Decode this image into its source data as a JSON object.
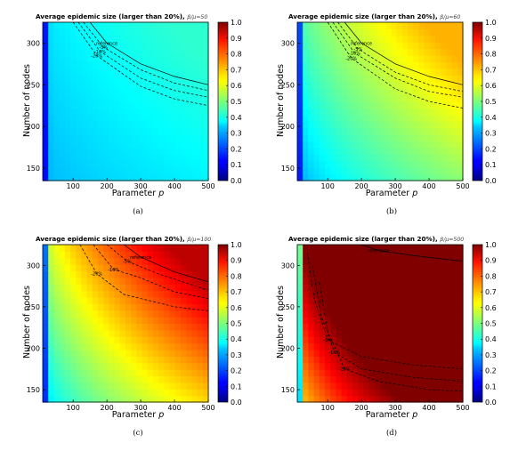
{
  "figure": {
    "panels": [
      {
        "caption": "(a)",
        "title": "Average epidemic size (larger than 20%),",
        "title_param": "β/μ=50"
      },
      {
        "caption": "(b)",
        "title": "Average epidemic size (larger than 20%),",
        "title_param": "β/μ=60"
      },
      {
        "caption": "(c)",
        "title": "Average epidemic size (larger than 20%),",
        "title_param": "β/μ=100"
      },
      {
        "caption": "(d)",
        "title": "Average epidemic size (larger than 20%),",
        "title_param": "β/μ=500"
      }
    ]
  },
  "chart_data": [
    {
      "type": "heatmap",
      "title": "Average epidemic size (larger than 20%), β/μ=50",
      "xlabel": "Parameter p",
      "ylabel": "Number of nodes",
      "xlim": [
        10,
        500
      ],
      "ylim": [
        135,
        325
      ],
      "x_ticks": [
        100,
        200,
        300,
        400,
        500
      ],
      "y_ticks": [
        150,
        200,
        250,
        300
      ],
      "colorbar": {
        "min": 0.0,
        "max": 1.0,
        "ticks": [
          "0.0",
          "0.1",
          "0.2",
          "0.3",
          "0.4",
          "0.5",
          "0.6",
          "0.7",
          "0.8",
          "0.9",
          "1.0"
        ]
      },
      "level": 0.35,
      "contours": [
        {
          "label": "reference",
          "style": "solid",
          "points": [
            [
              150,
              325
            ],
            [
              200,
              300
            ],
            [
              300,
              275
            ],
            [
              400,
              260
            ],
            [
              500,
              250
            ]
          ]
        },
        {
          "label": "-5%",
          "style": "dashed",
          "points": [
            [
              130,
              325
            ],
            [
              190,
              295
            ],
            [
              300,
              268
            ],
            [
              400,
              252
            ],
            [
              500,
              243
            ]
          ]
        },
        {
          "label": "-10%",
          "style": "dashed",
          "points": [
            [
              115,
              325
            ],
            [
              180,
              290
            ],
            [
              300,
              258
            ],
            [
              400,
              243
            ],
            [
              500,
              235
            ]
          ]
        },
        {
          "label": "-20%",
          "style": "dashed",
          "points": [
            [
              100,
              325
            ],
            [
              170,
              285
            ],
            [
              300,
              248
            ],
            [
              400,
              233
            ],
            [
              500,
              225
            ]
          ]
        }
      ]
    },
    {
      "type": "heatmap",
      "title": "Average epidemic size (larger than 20%), β/μ=60",
      "xlabel": "Parameter p",
      "ylabel": "Number of nodes",
      "xlim": [
        10,
        500
      ],
      "ylim": [
        135,
        325
      ],
      "x_ticks": [
        100,
        200,
        300,
        400,
        500
      ],
      "y_ticks": [
        150,
        200,
        250,
        300
      ],
      "colorbar": {
        "min": 0.0,
        "max": 1.0,
        "ticks": [
          "0.0",
          "0.1",
          "0.2",
          "0.3",
          "0.4",
          "0.5",
          "0.6",
          "0.7",
          "0.8",
          "0.9",
          "1.0"
        ]
      },
      "level": 0.5,
      "contours": [
        {
          "label": "reference",
          "style": "solid",
          "points": [
            [
              150,
              325
            ],
            [
              200,
              300
            ],
            [
              300,
              275
            ],
            [
              400,
              260
            ],
            [
              500,
              250
            ]
          ]
        },
        {
          "label": "-5%",
          "style": "dashed",
          "points": [
            [
              130,
              325
            ],
            [
              190,
              293
            ],
            [
              300,
              265
            ],
            [
              400,
              250
            ],
            [
              500,
              242
            ]
          ]
        },
        {
          "label": "-10%",
          "style": "dashed",
          "points": [
            [
              115,
              325
            ],
            [
              180,
              288
            ],
            [
              300,
              258
            ],
            [
              400,
              242
            ],
            [
              500,
              235
            ]
          ]
        },
        {
          "label": "-20%",
          "style": "dashed",
          "points": [
            [
              100,
              325
            ],
            [
              170,
              282
            ],
            [
              300,
              245
            ],
            [
              400,
              230
            ],
            [
              500,
              222
            ]
          ]
        }
      ]
    },
    {
      "type": "heatmap",
      "title": "Average epidemic size (larger than 20%), β/μ=100",
      "xlabel": "Parameter p",
      "ylabel": "Number of nodes",
      "xlim": [
        10,
        500
      ],
      "ylim": [
        135,
        325
      ],
      "x_ticks": [
        100,
        200,
        300,
        400,
        500
      ],
      "y_ticks": [
        150,
        200,
        250,
        300
      ],
      "colorbar": {
        "min": 0.0,
        "max": 1.0,
        "ticks": [
          "0.0",
          "0.1",
          "0.2",
          "0.3",
          "0.4",
          "0.5",
          "0.6",
          "0.7",
          "0.8",
          "0.9",
          "1.0"
        ]
      },
      "level": 0.72,
      "contours": [
        {
          "label": "reference",
          "style": "solid",
          "points": [
            [
              250,
              325
            ],
            [
              300,
              310
            ],
            [
              400,
              292
            ],
            [
              500,
              280
            ]
          ]
        },
        {
          "label": "-5%",
          "style": "dashed",
          "points": [
            [
              200,
              325
            ],
            [
              260,
              305
            ],
            [
              350,
              290
            ],
            [
              500,
              270
            ]
          ]
        },
        {
          "label": "-10%",
          "style": "dashed",
          "points": [
            [
              160,
              325
            ],
            [
              220,
              295
            ],
            [
              300,
              285
            ],
            [
              400,
              268
            ],
            [
              500,
              260
            ]
          ]
        },
        {
          "label": "-20%",
          "style": "dashed",
          "points": [
            [
              120,
              325
            ],
            [
              170,
              290
            ],
            [
              250,
              265
            ],
            [
              400,
              250
            ],
            [
              500,
              245
            ]
          ]
        }
      ]
    },
    {
      "type": "heatmap",
      "title": "Average epidemic size (larger than 20%), β/μ=500",
      "xlabel": "Parameter p",
      "ylabel": "Number of nodes",
      "xlim": [
        10,
        500
      ],
      "ylim": [
        135,
        325
      ],
      "x_ticks": [
        100,
        200,
        300,
        400,
        500
      ],
      "y_ticks": [
        150,
        200,
        250,
        300
      ],
      "colorbar": {
        "min": 0.0,
        "max": 1.0,
        "ticks": [
          "0.0",
          "0.1",
          "0.2",
          "0.3",
          "0.4",
          "0.5",
          "0.6",
          "0.7",
          "0.8",
          "0.9",
          "1.0"
        ]
      },
      "level": 0.95,
      "contours": [
        {
          "label": "reference",
          "style": "solid",
          "points": [
            [
              200,
              325
            ],
            [
              250,
              318
            ],
            [
              350,
              312
            ],
            [
              500,
              305
            ]
          ]
        },
        {
          "label": "-5%",
          "style": "dashed",
          "points": [
            [
              40,
              315
            ],
            [
              60,
              260
            ],
            [
              100,
              210
            ],
            [
              200,
              190
            ],
            [
              350,
              180
            ],
            [
              500,
              175
            ]
          ]
        },
        {
          "label": "-10%",
          "style": "dashed",
          "points": [
            [
              55,
              300
            ],
            [
              80,
              240
            ],
            [
              120,
              195
            ],
            [
              200,
              175
            ],
            [
              350,
              165
            ],
            [
              500,
              160
            ]
          ]
        },
        {
          "label": "-20%",
          "style": "dashed",
          "points": [
            [
              75,
              280
            ],
            [
              100,
              220
            ],
            [
              150,
              175
            ],
            [
              250,
              160
            ],
            [
              400,
              150
            ],
            [
              500,
              148
            ]
          ]
        }
      ]
    }
  ]
}
